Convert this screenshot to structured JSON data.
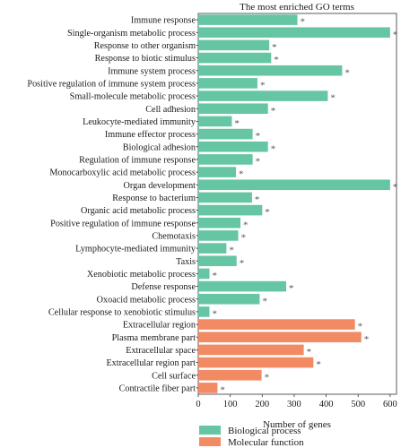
{
  "chart_data": {
    "type": "bar",
    "orientation": "horizontal",
    "title": "The most enriched GO terms",
    "xlabel": "Number of genes",
    "xlim": [
      0,
      620
    ],
    "xticks": [
      0,
      100,
      200,
      300,
      400,
      500,
      600
    ],
    "grid": false,
    "legend_position": "bottom",
    "significance_marker": "*",
    "colors": {
      "Biological process": "#66c6a4",
      "Molecular function": "#f28a63"
    },
    "legend": [
      "Biological process",
      "Molecular function"
    ],
    "categories": [
      "Immune response",
      "Single-organism metabolic process",
      "Response to other organism",
      "Response to biotic stimulus",
      "Immune system process",
      "Positive regulation of immune system process",
      "Small-molecule metabolic process",
      "Cell adhesion",
      "Leukocyte-mediated immunity",
      "Immune effector process",
      "Biological adhesion",
      "Regulation of immune response",
      "Monocarboxylic acid metabolic process",
      "Organ development",
      "Response to bacterium",
      "Organic acid metabolic process",
      "Positive regulation of immune response",
      "Chemotaxis",
      "Lymphocyte-mediated immunity",
      "Taxis",
      "Xenobiotic metabolic process",
      "Defense response",
      "Oxoacid metabolic process",
      "Cellular response to xenobiotic stimulus",
      "Extracellular region",
      "Plasma membrane part",
      "Extracellular space",
      "Extracellular region part",
      "Cell surface",
      "Contractile fiber part"
    ],
    "values": [
      310,
      600,
      222,
      228,
      450,
      185,
      405,
      218,
      105,
      170,
      218,
      170,
      118,
      600,
      168,
      200,
      132,
      125,
      88,
      120,
      35,
      275,
      192,
      35,
      490,
      510,
      330,
      360,
      198,
      60
    ],
    "groups": [
      "Biological process",
      "Biological process",
      "Biological process",
      "Biological process",
      "Biological process",
      "Biological process",
      "Biological process",
      "Biological process",
      "Biological process",
      "Biological process",
      "Biological process",
      "Biological process",
      "Biological process",
      "Biological process",
      "Biological process",
      "Biological process",
      "Biological process",
      "Biological process",
      "Biological process",
      "Biological process",
      "Biological process",
      "Biological process",
      "Biological process",
      "Biological process",
      "Molecular function",
      "Molecular function",
      "Molecular function",
      "Molecular function",
      "Molecular function",
      "Molecular function"
    ]
  }
}
